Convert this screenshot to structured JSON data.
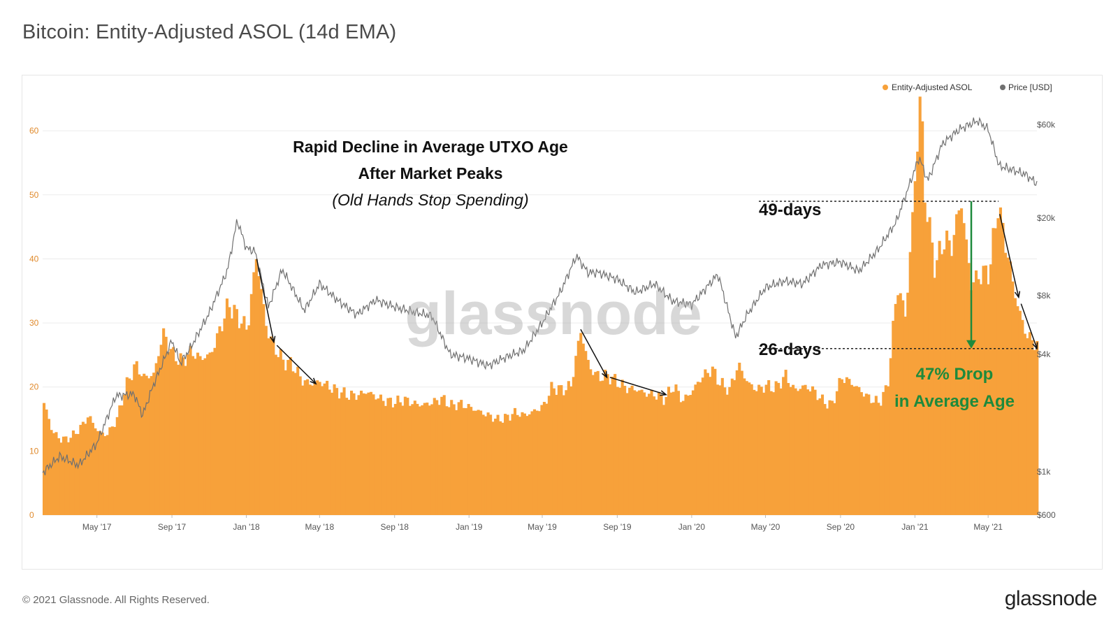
{
  "page": {
    "title": "Bitcoin: Entity-Adjusted ASOL (14d EMA)",
    "copyright": "© 2021 Glassnode. All Rights Reserved.",
    "logo": "glassnode",
    "watermark": "glassnode"
  },
  "colors": {
    "asol": "#f7a13a",
    "price": "#707070",
    "left_axis": "#e08a2c",
    "annotation_green": "#1e8a3c",
    "grid": "#ececec"
  },
  "annotations": {
    "headline_line1": "Rapid Decline in Average UTXO Age",
    "headline_line2": "After Market Peaks",
    "headline_sub": "(Old Hands Stop Spending)",
    "level_high": "49-days",
    "level_low": "26-days",
    "drop_line1": "47% Drop",
    "drop_line2": "in Average Age"
  },
  "chart_data": {
    "type": "bar",
    "title": "Bitcoin: Entity-Adjusted ASOL (14d EMA)",
    "legend": [
      "Entity-Adjusted ASOL",
      "Price [USD]"
    ],
    "legend_position": "top-right",
    "grid": true,
    "x_start": "2017-02-01",
    "x_end": "2021-07-20",
    "x_ticks": [
      "May '17",
      "Sep '17",
      "Jan '18",
      "May '18",
      "Sep '18",
      "Jan '19",
      "May '19",
      "Sep '19",
      "Jan '20",
      "May '20",
      "Sep '20",
      "Jan '21",
      "May '21"
    ],
    "x_tick_dates": [
      "2017-05-01",
      "2017-09-01",
      "2018-01-01",
      "2018-05-01",
      "2018-09-01",
      "2019-01-01",
      "2019-05-01",
      "2019-09-01",
      "2020-01-01",
      "2020-05-01",
      "2020-09-01",
      "2021-01-01",
      "2021-05-01"
    ],
    "y_left": {
      "ticks": [
        0,
        10,
        20,
        30,
        40,
        50,
        60
      ],
      "ylim": [
        0,
        67
      ]
    },
    "y_right": {
      "scale": "log",
      "ticks": [
        600,
        1000,
        4000,
        8000,
        20000,
        60000
      ],
      "tick_labels": [
        "$600",
        "$1k",
        "$4k",
        "$8k",
        "$20k",
        "$60k"
      ]
    },
    "reference_levels": [
      49,
      26
    ],
    "series": [
      {
        "name": "Entity-Adjusted ASOL",
        "type": "bar",
        "points": [
          [
            "2017-02-01",
            17.5
          ],
          [
            "2017-02-15",
            13.0
          ],
          [
            "2017-03-01",
            11.8
          ],
          [
            "2017-03-15",
            12.0
          ],
          [
            "2017-04-01",
            13.5
          ],
          [
            "2017-04-15",
            15.5
          ],
          [
            "2017-05-01",
            13.0
          ],
          [
            "2017-05-15",
            12.5
          ],
          [
            "2017-06-01",
            15.0
          ],
          [
            "2017-06-15",
            20.0
          ],
          [
            "2017-07-01",
            23.5
          ],
          [
            "2017-07-15",
            21.5
          ],
          [
            "2017-08-01",
            22.0
          ],
          [
            "2017-08-15",
            28.5
          ],
          [
            "2017-09-01",
            25.0
          ],
          [
            "2017-09-15",
            24.0
          ],
          [
            "2017-10-01",
            25.5
          ],
          [
            "2017-10-15",
            24.5
          ],
          [
            "2017-11-01",
            25.0
          ],
          [
            "2017-11-15",
            28.5
          ],
          [
            "2017-12-01",
            33.0
          ],
          [
            "2017-12-15",
            31.0
          ],
          [
            "2018-01-01",
            29.0
          ],
          [
            "2018-01-15",
            40.5
          ],
          [
            "2018-02-01",
            29.0
          ],
          [
            "2018-02-15",
            26.0
          ],
          [
            "2018-03-01",
            24.0
          ],
          [
            "2018-03-15",
            23.5
          ],
          [
            "2018-04-01",
            21.0
          ],
          [
            "2018-04-15",
            20.5
          ],
          [
            "2018-05-01",
            20.8
          ],
          [
            "2018-05-15",
            20.0
          ],
          [
            "2018-06-01",
            19.2
          ],
          [
            "2018-06-15",
            18.7
          ],
          [
            "2018-07-01",
            18.7
          ],
          [
            "2018-07-15",
            19.3
          ],
          [
            "2018-08-01",
            18.4
          ],
          [
            "2018-08-15",
            17.8
          ],
          [
            "2018-09-01",
            17.6
          ],
          [
            "2018-09-15",
            18.0
          ],
          [
            "2018-10-01",
            17.4
          ],
          [
            "2018-10-15",
            17.2
          ],
          [
            "2018-11-01",
            17.6
          ],
          [
            "2018-11-15",
            18.2
          ],
          [
            "2018-12-01",
            17.1
          ],
          [
            "2018-12-15",
            17.4
          ],
          [
            "2019-01-01",
            16.8
          ],
          [
            "2019-01-15",
            16.2
          ],
          [
            "2019-02-01",
            15.5
          ],
          [
            "2019-02-15",
            14.9
          ],
          [
            "2019-03-01",
            15.2
          ],
          [
            "2019-03-15",
            16.0
          ],
          [
            "2019-04-01",
            15.6
          ],
          [
            "2019-04-15",
            16.2
          ],
          [
            "2019-05-01",
            17.0
          ],
          [
            "2019-05-15",
            20.0
          ],
          [
            "2019-06-01",
            19.5
          ],
          [
            "2019-06-15",
            20.2
          ],
          [
            "2019-07-01",
            28.8
          ],
          [
            "2019-07-15",
            23.0
          ],
          [
            "2019-08-01",
            21.5
          ],
          [
            "2019-08-15",
            21.8
          ],
          [
            "2019-09-01",
            20.6
          ],
          [
            "2019-09-15",
            19.8
          ],
          [
            "2019-10-01",
            19.6
          ],
          [
            "2019-10-15",
            19.0
          ],
          [
            "2019-11-01",
            18.8
          ],
          [
            "2019-11-15",
            18.1
          ],
          [
            "2019-12-01",
            20.2
          ],
          [
            "2019-12-15",
            17.8
          ],
          [
            "2020-01-01",
            19.5
          ],
          [
            "2020-01-15",
            21.5
          ],
          [
            "2020-02-01",
            22.8
          ],
          [
            "2020-02-15",
            20.5
          ],
          [
            "2020-03-01",
            19.5
          ],
          [
            "2020-03-15",
            23.5
          ],
          [
            "2020-04-01",
            20.5
          ],
          [
            "2020-04-15",
            19.6
          ],
          [
            "2020-05-01",
            20.2
          ],
          [
            "2020-05-15",
            19.8
          ],
          [
            "2020-06-01",
            21.8
          ],
          [
            "2020-06-15",
            19.5
          ],
          [
            "2020-07-01",
            20.1
          ],
          [
            "2020-07-15",
            19.6
          ],
          [
            "2020-08-01",
            17.8
          ],
          [
            "2020-08-15",
            17.1
          ],
          [
            "2020-09-01",
            21.5
          ],
          [
            "2020-09-15",
            20.8
          ],
          [
            "2020-10-01",
            19.5
          ],
          [
            "2020-10-15",
            18.3
          ],
          [
            "2020-11-01",
            17.5
          ],
          [
            "2020-11-15",
            20.0
          ],
          [
            "2020-12-01",
            36.0
          ],
          [
            "2020-12-15",
            31.0
          ],
          [
            "2021-01-01",
            55.0
          ],
          [
            "2021-01-08",
            66.5
          ],
          [
            "2021-01-15",
            50.0
          ],
          [
            "2021-02-01",
            38.5
          ],
          [
            "2021-02-15",
            43.0
          ],
          [
            "2021-03-01",
            42.0
          ],
          [
            "2021-03-15",
            49.5
          ],
          [
            "2021-04-01",
            36.0
          ],
          [
            "2021-04-15",
            37.5
          ],
          [
            "2021-05-01",
            38.0
          ],
          [
            "2021-05-15",
            48.5
          ],
          [
            "2021-06-01",
            40.0
          ],
          [
            "2021-06-15",
            33.0
          ],
          [
            "2021-07-01",
            28.0
          ],
          [
            "2021-07-20",
            26.5
          ]
        ]
      },
      {
        "name": "Price [USD]",
        "type": "line",
        "points": [
          [
            "2017-02-01",
            990
          ],
          [
            "2017-03-01",
            1200
          ],
          [
            "2017-04-01",
            1080
          ],
          [
            "2017-05-01",
            1400
          ],
          [
            "2017-06-01",
            2450
          ],
          [
            "2017-07-01",
            2500
          ],
          [
            "2017-07-15",
            1950
          ],
          [
            "2017-08-01",
            2750
          ],
          [
            "2017-09-01",
            4700
          ],
          [
            "2017-09-15",
            3600
          ],
          [
            "2017-10-01",
            4300
          ],
          [
            "2017-11-01",
            6500
          ],
          [
            "2017-12-01",
            10800
          ],
          [
            "2017-12-17",
            19500
          ],
          [
            "2018-01-01",
            14000
          ],
          [
            "2018-01-15",
            13500
          ],
          [
            "2018-02-06",
            7000
          ],
          [
            "2018-03-01",
            10900
          ],
          [
            "2018-04-06",
            6700
          ],
          [
            "2018-05-01",
            9200
          ],
          [
            "2018-06-01",
            7500
          ],
          [
            "2018-07-01",
            6400
          ],
          [
            "2018-08-01",
            7600
          ],
          [
            "2018-09-01",
            7000
          ],
          [
            "2018-10-01",
            6600
          ],
          [
            "2018-11-01",
            6300
          ],
          [
            "2018-12-01",
            4000
          ],
          [
            "2019-01-01",
            3800
          ],
          [
            "2019-02-01",
            3500
          ],
          [
            "2019-03-01",
            3850
          ],
          [
            "2019-04-01",
            4200
          ],
          [
            "2019-05-01",
            5800
          ],
          [
            "2019-06-01",
            8500
          ],
          [
            "2019-06-26",
            12800
          ],
          [
            "2019-07-15",
            10500
          ],
          [
            "2019-08-01",
            10500
          ],
          [
            "2019-09-01",
            9700
          ],
          [
            "2019-10-01",
            8300
          ],
          [
            "2019-11-01",
            9200
          ],
          [
            "2019-12-01",
            7500
          ],
          [
            "2020-01-01",
            7200
          ],
          [
            "2020-02-13",
            10300
          ],
          [
            "2020-03-13",
            4900
          ],
          [
            "2020-04-01",
            6400
          ],
          [
            "2020-05-01",
            8800
          ],
          [
            "2020-06-01",
            9500
          ],
          [
            "2020-07-01",
            9200
          ],
          [
            "2020-08-01",
            11500
          ],
          [
            "2020-09-01",
            11900
          ],
          [
            "2020-10-01",
            10700
          ],
          [
            "2020-11-01",
            13700
          ],
          [
            "2020-12-01",
            19000
          ],
          [
            "2021-01-08",
            41000
          ],
          [
            "2021-01-22",
            31000
          ],
          [
            "2021-02-15",
            48000
          ],
          [
            "2021-03-15",
            57000
          ],
          [
            "2021-04-14",
            63000
          ],
          [
            "2021-05-01",
            57000
          ],
          [
            "2021-05-19",
            37000
          ],
          [
            "2021-06-01",
            36000
          ],
          [
            "2021-07-01",
            33500
          ],
          [
            "2021-07-20",
            30000
          ]
        ]
      }
    ]
  }
}
